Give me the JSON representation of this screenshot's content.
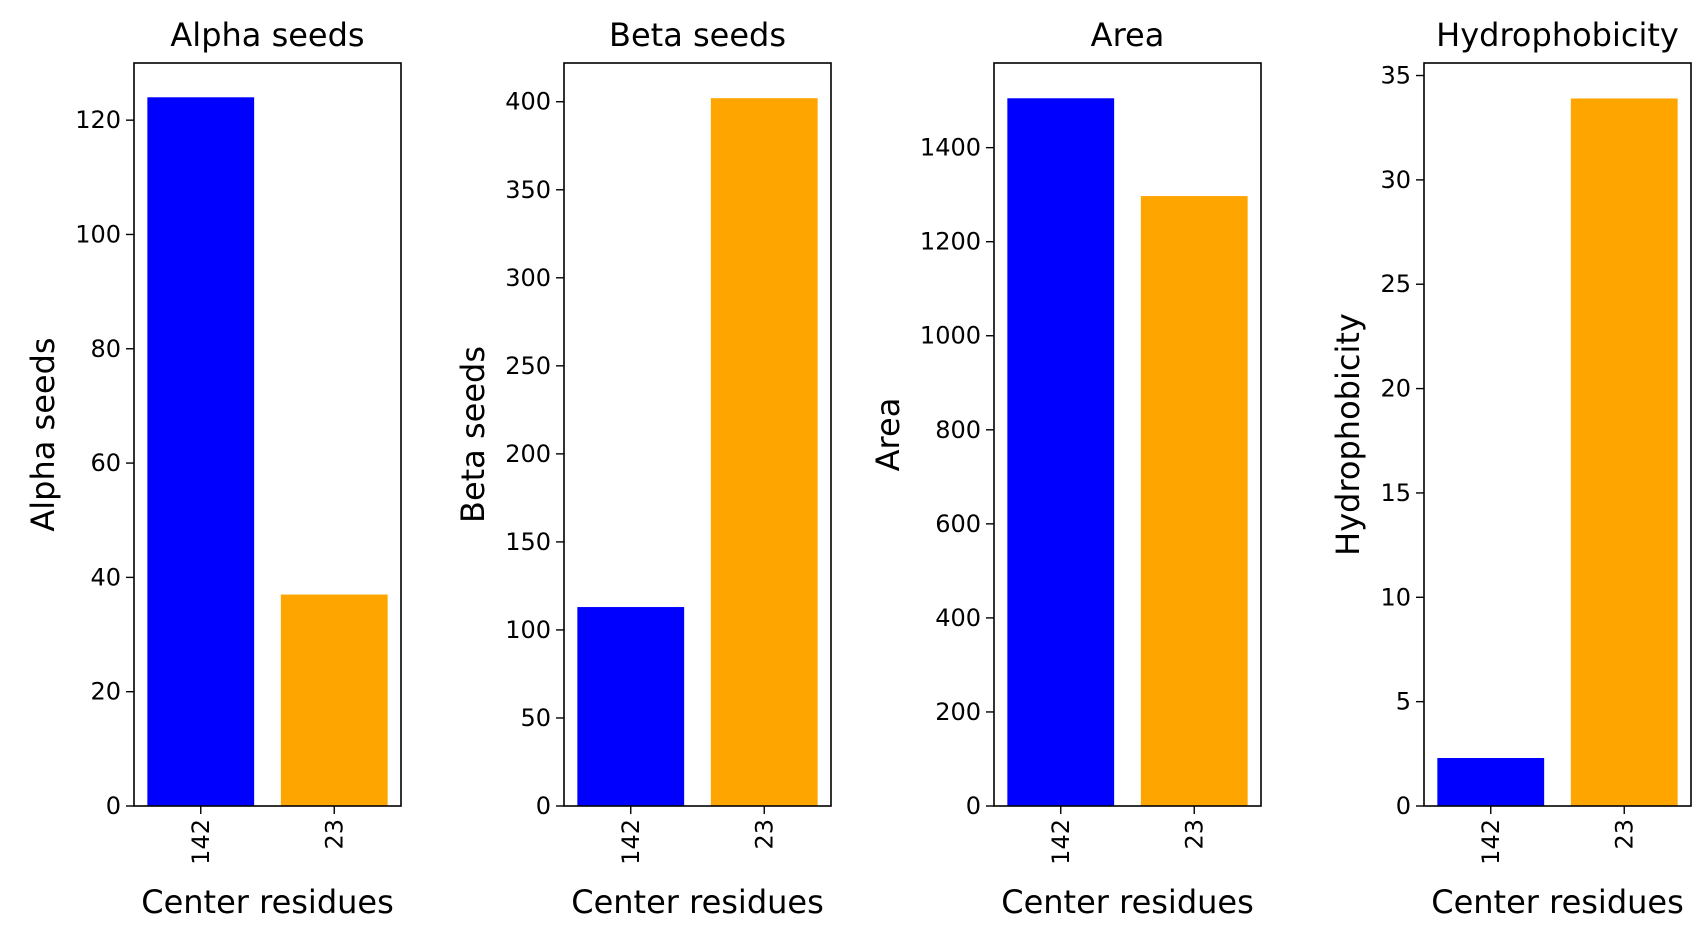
{
  "chart_data": [
    {
      "type": "bar",
      "title": "Alpha seeds",
      "xlabel": "Center residues",
      "ylabel": "Alpha seeds",
      "categories": [
        "142",
        "23"
      ],
      "values": [
        124,
        37
      ],
      "colors": [
        "#0000ff",
        "#ffa500"
      ],
      "ylim": [
        0,
        130
      ],
      "yticks": [
        0,
        20,
        40,
        60,
        80,
        100,
        120
      ],
      "xtick_rotation": 90,
      "grid": false,
      "legend": "none"
    },
    {
      "type": "bar",
      "title": "Beta seeds",
      "xlabel": "Center residues",
      "ylabel": "Beta seeds",
      "categories": [
        "142",
        "23"
      ],
      "values": [
        113,
        402
      ],
      "colors": [
        "#0000ff",
        "#ffa500"
      ],
      "ylim": [
        0,
        422
      ],
      "yticks": [
        0,
        50,
        100,
        150,
        200,
        250,
        300,
        350,
        400
      ],
      "xtick_rotation": 90,
      "grid": false,
      "legend": "none"
    },
    {
      "type": "bar",
      "title": "Area",
      "xlabel": "Center residues",
      "ylabel": "Area",
      "categories": [
        "142",
        "23"
      ],
      "values": [
        1505,
        1297
      ],
      "colors": [
        "#0000ff",
        "#ffa500"
      ],
      "ylim": [
        0,
        1580
      ],
      "yticks": [
        0,
        200,
        400,
        600,
        800,
        1000,
        1200,
        1400
      ],
      "xtick_rotation": 90,
      "grid": false,
      "legend": "none"
    },
    {
      "type": "bar",
      "title": "Hydrophobicity",
      "xlabel": "Center residues",
      "ylabel": "Hydrophobicity",
      "categories": [
        "142",
        "23"
      ],
      "values": [
        2.3,
        33.9
      ],
      "colors": [
        "#0000ff",
        "#ffa500"
      ],
      "ylim": [
        0,
        35.6
      ],
      "yticks": [
        0,
        5,
        10,
        15,
        20,
        25,
        30,
        35
      ],
      "xtick_rotation": 90,
      "grid": false,
      "legend": "none"
    }
  ]
}
